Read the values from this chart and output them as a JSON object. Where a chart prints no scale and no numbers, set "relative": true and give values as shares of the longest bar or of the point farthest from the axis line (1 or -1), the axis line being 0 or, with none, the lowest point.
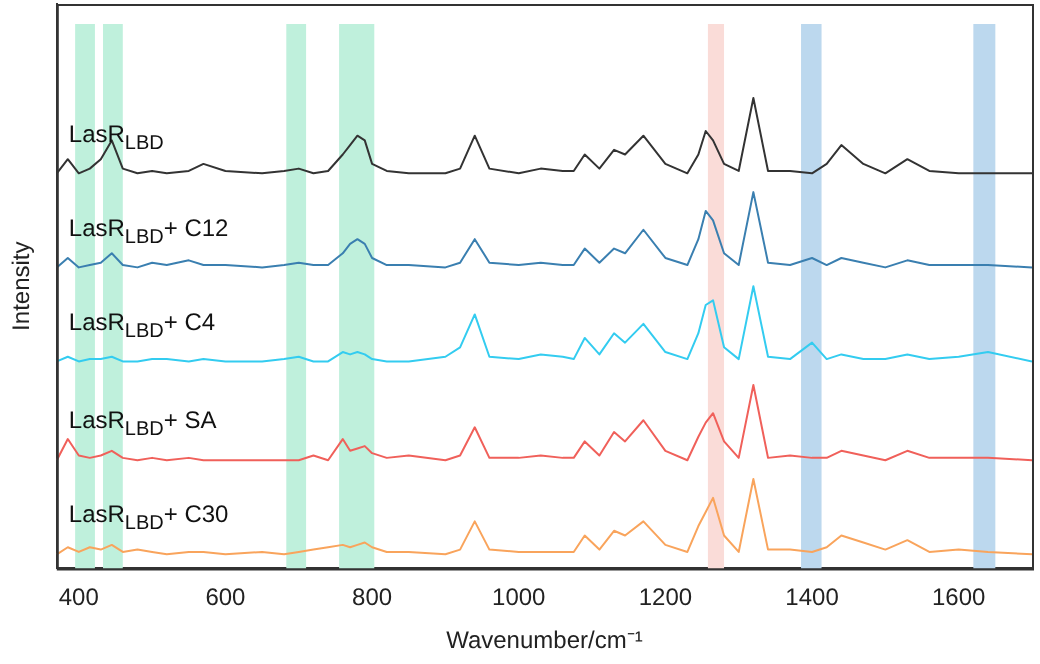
{
  "chart_data": {
    "type": "line",
    "relative": true,
    "xlabel": "Wavenumber/cm⁻¹",
    "ylabel": "Intensity",
    "xlim": [
      370,
      1700
    ],
    "xticks": [
      400,
      600,
      800,
      1000,
      1200,
      1400,
      1600
    ],
    "grid": false,
    "legend": false,
    "marker": "none",
    "line_style": "solid",
    "x": [
      370,
      385,
      400,
      415,
      430,
      445,
      460,
      480,
      500,
      520,
      550,
      570,
      600,
      650,
      680,
      700,
      720,
      740,
      760,
      770,
      780,
      790,
      800,
      820,
      850,
      900,
      920,
      940,
      960,
      1000,
      1030,
      1060,
      1075,
      1090,
      1110,
      1130,
      1145,
      1170,
      1200,
      1230,
      1245,
      1255,
      1265,
      1280,
      1300,
      1320,
      1340,
      1370,
      1400,
      1420,
      1440,
      1470,
      1500,
      1530,
      1560,
      1600,
      1640,
      1700
    ],
    "series": [
      {
        "name": "LasR$_{LBD}$",
        "color": "#333333",
        "values": [
          0.84,
          0.87,
          0.84,
          0.85,
          0.87,
          0.91,
          0.85,
          0.84,
          0.845,
          0.84,
          0.845,
          0.86,
          0.845,
          0.84,
          0.845,
          0.85,
          0.84,
          0.845,
          0.88,
          0.9,
          0.92,
          0.91,
          0.86,
          0.845,
          0.84,
          0.84,
          0.85,
          0.92,
          0.85,
          0.84,
          0.85,
          0.845,
          0.845,
          0.88,
          0.85,
          0.89,
          0.88,
          0.92,
          0.86,
          0.84,
          0.88,
          0.93,
          0.91,
          0.86,
          0.845,
          1.0,
          0.845,
          0.845,
          0.84,
          0.86,
          0.9,
          0.86,
          0.84,
          0.87,
          0.845,
          0.84,
          0.84,
          0.84
        ]
      },
      {
        "name": "LasR$_{LBD}$+ C12",
        "color": "#3a7fb0",
        "values": [
          0.64,
          0.66,
          0.64,
          0.645,
          0.65,
          0.67,
          0.645,
          0.64,
          0.65,
          0.645,
          0.655,
          0.645,
          0.645,
          0.64,
          0.645,
          0.65,
          0.645,
          0.645,
          0.67,
          0.69,
          0.7,
          0.69,
          0.66,
          0.645,
          0.645,
          0.64,
          0.65,
          0.7,
          0.65,
          0.645,
          0.65,
          0.645,
          0.645,
          0.68,
          0.65,
          0.68,
          0.67,
          0.72,
          0.66,
          0.645,
          0.7,
          0.76,
          0.74,
          0.67,
          0.645,
          0.8,
          0.65,
          0.645,
          0.66,
          0.645,
          0.66,
          0.65,
          0.64,
          0.655,
          0.645,
          0.645,
          0.645,
          0.64
        ]
      },
      {
        "name": "LasR$_{LBD}$+ C4",
        "color": "#33ccf0",
        "values": [
          0.44,
          0.45,
          0.44,
          0.445,
          0.445,
          0.45,
          0.44,
          0.44,
          0.445,
          0.445,
          0.44,
          0.445,
          0.44,
          0.44,
          0.445,
          0.45,
          0.44,
          0.44,
          0.46,
          0.455,
          0.46,
          0.455,
          0.445,
          0.44,
          0.44,
          0.45,
          0.47,
          0.54,
          0.45,
          0.445,
          0.455,
          0.45,
          0.445,
          0.49,
          0.455,
          0.5,
          0.48,
          0.52,
          0.46,
          0.445,
          0.5,
          0.56,
          0.57,
          0.47,
          0.445,
          0.6,
          0.45,
          0.445,
          0.48,
          0.445,
          0.455,
          0.445,
          0.445,
          0.455,
          0.445,
          0.45,
          0.46,
          0.44
        ]
      },
      {
        "name": "LasR$_{LBD}$+ SA",
        "color": "#f0605a",
        "values": [
          0.23,
          0.275,
          0.24,
          0.235,
          0.24,
          0.25,
          0.235,
          0.23,
          0.235,
          0.23,
          0.235,
          0.23,
          0.23,
          0.23,
          0.23,
          0.23,
          0.24,
          0.23,
          0.275,
          0.25,
          0.255,
          0.26,
          0.245,
          0.235,
          0.24,
          0.23,
          0.24,
          0.3,
          0.235,
          0.235,
          0.24,
          0.235,
          0.235,
          0.27,
          0.24,
          0.29,
          0.27,
          0.315,
          0.25,
          0.23,
          0.28,
          0.31,
          0.33,
          0.27,
          0.235,
          0.39,
          0.235,
          0.24,
          0.235,
          0.235,
          0.25,
          0.24,
          0.23,
          0.25,
          0.235,
          0.235,
          0.235,
          0.23
        ]
      },
      {
        "name": "LasR$_{LBD}$+ C30",
        "color": "#f9a45c",
        "values": [
          0.03,
          0.045,
          0.035,
          0.045,
          0.04,
          0.05,
          0.035,
          0.04,
          0.035,
          0.03,
          0.035,
          0.035,
          0.03,
          0.035,
          0.03,
          0.035,
          0.04,
          0.045,
          0.05,
          0.045,
          0.05,
          0.055,
          0.045,
          0.035,
          0.035,
          0.03,
          0.04,
          0.1,
          0.04,
          0.035,
          0.035,
          0.035,
          0.035,
          0.07,
          0.04,
          0.08,
          0.07,
          0.1,
          0.05,
          0.035,
          0.09,
          0.12,
          0.15,
          0.07,
          0.035,
          0.19,
          0.04,
          0.04,
          0.035,
          0.045,
          0.07,
          0.055,
          0.04,
          0.06,
          0.035,
          0.04,
          0.035,
          0.03
        ]
      }
    ],
    "bands": [
      {
        "axis": "x",
        "from": 395,
        "to": 422,
        "color": "#bff0dc"
      },
      {
        "axis": "x",
        "from": 433,
        "to": 460,
        "color": "#bff0dc"
      },
      {
        "axis": "x",
        "from": 683,
        "to": 710,
        "color": "#bff0dc"
      },
      {
        "axis": "x",
        "from": 755,
        "to": 803,
        "color": "#bff0dc"
      },
      {
        "axis": "x",
        "from": 1258,
        "to": 1280,
        "color": "#fadcd8"
      },
      {
        "axis": "x",
        "from": 1385,
        "to": 1413,
        "color": "#bcd8ee"
      },
      {
        "axis": "x",
        "from": 1620,
        "to": 1650,
        "color": "#bcd8ee"
      }
    ]
  }
}
